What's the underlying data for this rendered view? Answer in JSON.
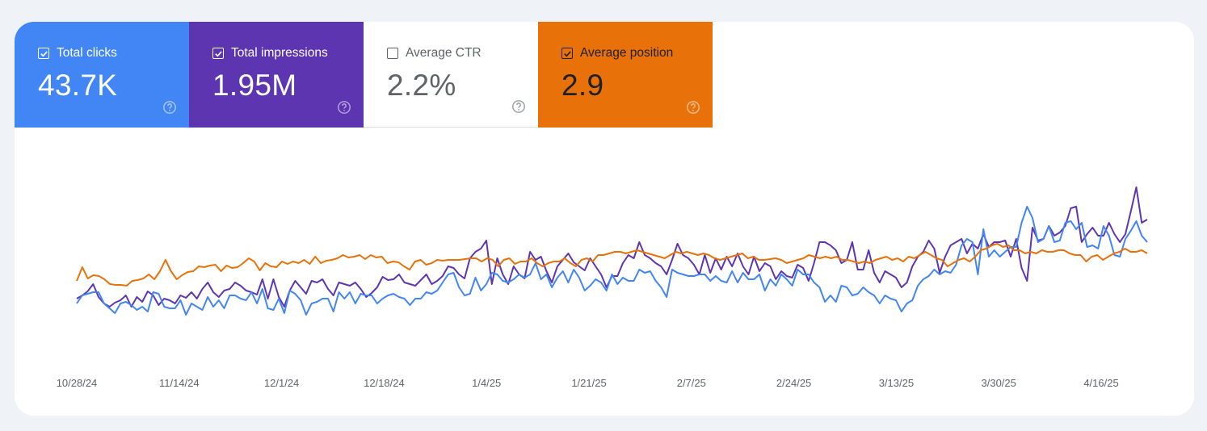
{
  "metrics": [
    {
      "label": "Total clicks",
      "value": "43.7K",
      "checked": true,
      "bg": "#4285f4",
      "fg": "#ffffff"
    },
    {
      "label": "Total impressions",
      "value": "1.95M",
      "checked": true,
      "bg": "#5e35b1",
      "fg": "#ffffff"
    },
    {
      "label": "Average CTR",
      "value": "2.2%",
      "checked": false,
      "bg": "#ffffff",
      "fg": "#5f6368"
    },
    {
      "label": "Average position",
      "value": "2.9",
      "checked": true,
      "bg": "#e8710a",
      "fg": "#202124"
    }
  ],
  "chart_data": {
    "type": "line",
    "x_ticks": [
      "10/28/24",
      "11/14/24",
      "12/1/24",
      "12/18/24",
      "1/4/25",
      "1/21/25",
      "2/7/25",
      "2/24/25",
      "3/13/25",
      "3/30/25",
      "4/16/25"
    ],
    "y_axis_visible": false,
    "grid": false,
    "series": [
      {
        "name": "Total impressions",
        "color": "#5e35b1",
        "values": [
          370,
          366,
          361,
          352,
          368,
          376,
          380,
          375,
          372,
          366,
          380,
          368,
          374,
          361,
          366,
          378,
          370,
          372,
          376,
          366,
          369,
          362,
          370,
          358,
          350,
          362,
          368,
          360,
          358,
          350,
          354,
          360,
          362,
          365,
          346,
          370,
          346,
          368,
          380,
          360,
          348,
          356,
          364,
          348,
          350,
          346,
          358,
          366,
          350,
          352,
          354,
          350,
          358,
          368,
          363,
          356,
          343,
          347,
          346,
          340,
          350,
          352,
          354,
          347,
          340,
          352,
          348,
          342,
          330,
          332,
          340,
          345,
          320,
          312,
          308,
          298,
          352,
          320,
          340,
          352,
          330,
          340,
          345,
          312,
          322,
          318,
          336,
          350,
          330,
          322,
          314,
          325,
          330,
          335,
          320,
          330,
          340,
          356,
          342,
          342,
          326,
          316,
          320,
          300,
          316,
          320,
          326,
          330,
          340,
          322,
          302,
          316,
          320,
          328,
          340,
          316,
          338,
          320,
          334,
          318,
          330,
          314,
          330,
          340,
          318,
          336,
          326,
          330,
          346,
          336,
          342,
          344,
          328,
          332,
          348,
          326,
          300,
          300,
          304,
          310,
          326,
          322,
          300,
          334,
          334,
          310,
          338,
          350,
          336,
          340,
          344,
          356,
          350,
          330,
          318,
          312,
          298,
          308,
          338,
          318,
          304,
          300,
          296,
          314,
          302,
          308,
          290,
          306,
          300,
          300,
          298,
          318,
          296,
          332,
          348,
          282,
          298,
          296,
          280,
          292,
          288,
          280,
          258,
          256,
          300,
          290,
          282,
          292,
          292,
          276,
          290,
          300,
          290,
          262,
          232,
          276,
          272
        ],
        "labels": {}
      },
      {
        "name": "Total clicks",
        "color": "#4285f4",
        "values": [
          376,
          366,
          364,
          362,
          362,
          376,
          382,
          388,
          376,
          374,
          378,
          384,
          380,
          386,
          362,
          364,
          380,
          382,
          382,
          372,
          390,
          376,
          380,
          384,
          368,
          380,
          372,
          382,
          366,
          366,
          370,
          372,
          362,
          376,
          358,
          382,
          384,
          370,
          388,
          360,
          364,
          372,
          390,
          376,
          374,
          370,
          370,
          386,
          362,
          370,
          362,
          376,
          364,
          366,
          366,
          376,
          370,
          366,
          364,
          368,
          370,
          378,
          370,
          370,
          362,
          364,
          360,
          350,
          340,
          338,
          356,
          366,
          364,
          344,
          360,
          352,
          338,
          340,
          348,
          350,
          346,
          340,
          344,
          340,
          326,
          346,
          340,
          356,
          344,
          336,
          350,
          334,
          344,
          360,
          354,
          346,
          350,
          360,
          340,
          352,
          344,
          348,
          348,
          334,
          338,
          336,
          348,
          356,
          368,
          334,
          338,
          340,
          342,
          342,
          340,
          340,
          348,
          342,
          348,
          350,
          336,
          350,
          338,
          346,
          346,
          340,
          360,
          346,
          354,
          340,
          346,
          354,
          334,
          340,
          340,
          350,
          356,
          374,
          366,
          374,
          354,
          356,
          366,
          364,
          356,
          362,
          366,
          376,
          366,
          370,
          372,
          386,
          376,
          372,
          354,
          346,
          342,
          334,
          340,
          336,
          338,
          328,
          304,
          296,
          300,
          340,
          284,
          318,
          310,
          318,
          312,
          306,
          306,
          276,
          256,
          270,
          300,
          296,
          280,
          300,
          298,
          276,
          274,
          284,
          276,
          306,
          304,
          308,
          280,
          292,
          316,
          318,
          296,
          286,
          274,
          292,
          300
        ],
        "labels": {}
      },
      {
        "name": "Average position",
        "color": "#e8710a",
        "values": [
          348,
          331,
          345,
          341,
          342,
          346,
          352,
          353,
          353,
          354,
          348,
          347,
          345,
          340,
          346,
          336,
          322,
          336,
          346,
          341,
          337,
          336,
          330,
          331,
          329,
          328,
          336,
          329,
          332,
          331,
          326,
          320,
          324,
          335,
          326,
          330,
          331,
          324,
          327,
          324,
          326,
          322,
          327,
          318,
          326,
          323,
          322,
          320,
          316,
          319,
          318,
          316,
          321,
          316,
          319,
          318,
          326,
          324,
          325,
          330,
          334,
          324,
          322,
          328,
          326,
          322,
          323,
          322,
          322,
          322,
          321,
          320,
          320,
          324,
          320,
          322,
          330,
          322,
          320,
          327,
          324,
          324,
          320,
          326,
          330,
          326,
          324,
          324,
          320,
          326,
          330,
          322,
          320,
          324,
          316,
          316,
          314,
          312,
          312,
          314,
          312,
          310,
          312,
          314,
          316,
          318,
          320,
          316,
          312,
          314,
          312,
          314,
          316,
          314,
          316,
          320,
          322,
          320,
          318,
          316,
          314,
          320,
          318,
          322,
          322,
          321,
          320,
          322,
          326,
          324,
          322,
          320,
          316,
          318,
          320,
          318,
          320,
          318,
          322,
          322,
          324,
          326,
          324,
          326,
          322,
          320,
          318,
          322,
          320,
          324,
          318,
          320,
          316,
          312,
          316,
          320,
          322,
          330,
          326,
          322,
          320,
          324,
          318,
          310,
          308,
          304,
          302,
          306,
          304,
          310,
          310,
          314,
          312,
          314,
          310,
          312,
          312,
          310,
          310,
          314,
          316,
          316,
          324,
          318,
          316,
          322,
          318,
          314,
          312,
          308,
          312,
          312,
          310,
          314
        ],
        "labels": {}
      }
    ]
  }
}
